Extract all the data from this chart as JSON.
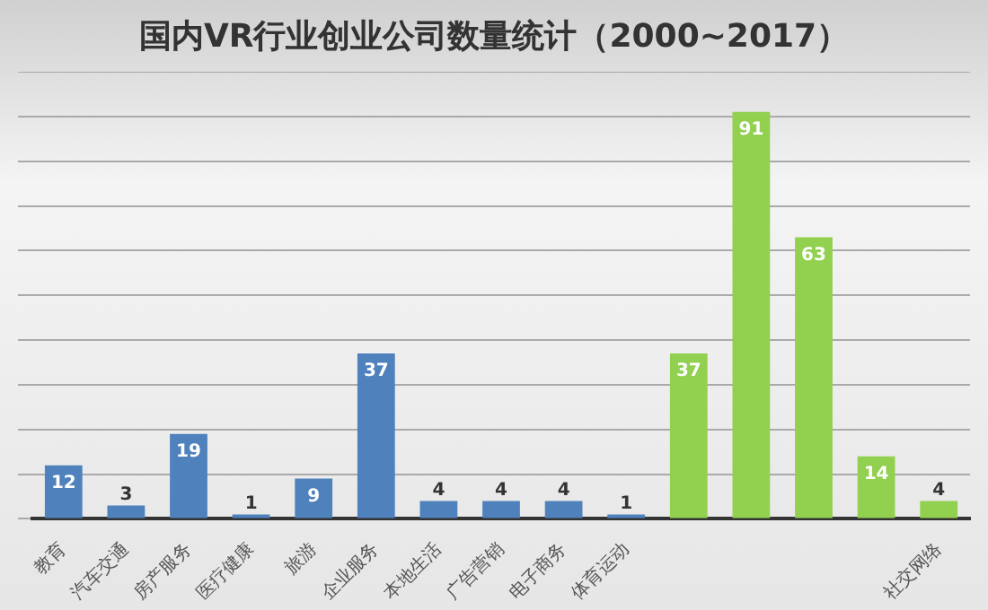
{
  "chart_data": {
    "type": "bar",
    "title": "国内VR行业创业公司数量统计（2000~2017）",
    "categories": [
      "教育",
      "汽车交通",
      "房产服务",
      "医疗健康",
      "旅游",
      "企业服务",
      "本地生活",
      "广告营销",
      "电子商务",
      "体育运动",
      null,
      null,
      null,
      null,
      "社交网络"
    ],
    "values": [
      12,
      3,
      19,
      1,
      9,
      37,
      4,
      4,
      4,
      1,
      37,
      91,
      63,
      14,
      4
    ],
    "colors": [
      "#4f81bd",
      "#4f81bd",
      "#4f81bd",
      "#4f81bd",
      "#4f81bd",
      "#4f81bd",
      "#4f81bd",
      "#4f81bd",
      "#4f81bd",
      "#4f81bd",
      "#92d050",
      "#92d050",
      "#92d050",
      "#92d050",
      "#92d050"
    ],
    "ylim": [
      0,
      100
    ],
    "yticks": [
      0,
      10,
      20,
      30,
      40,
      50,
      60,
      70,
      80,
      90,
      100
    ],
    "grid": "y",
    "tick_labels": "x",
    "data_labels": true,
    "legend": false
  }
}
